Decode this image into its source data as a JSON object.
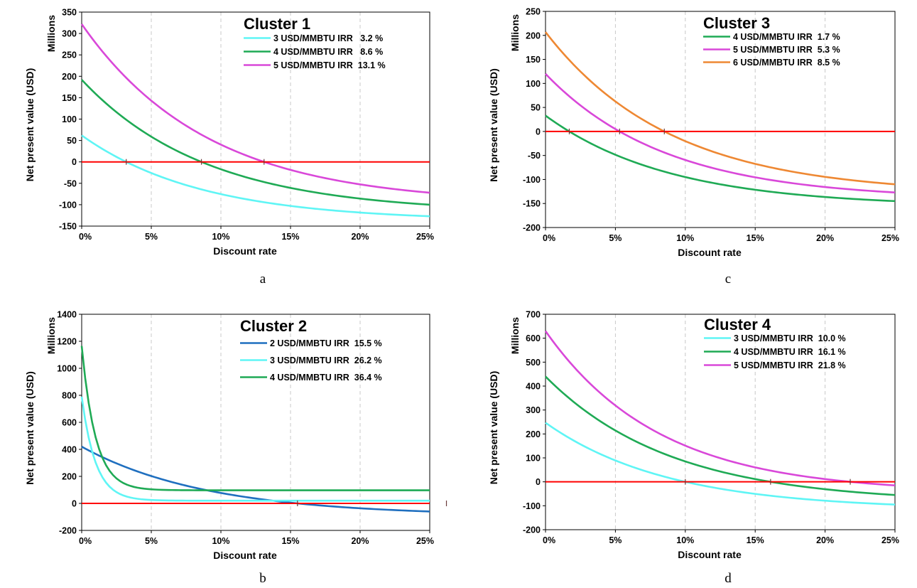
{
  "colors": {
    "zero_line": "#ff0000",
    "grid": "#c8c8c8",
    "axis": "#000000"
  },
  "chart_data": [
    {
      "panel_label": "a",
      "type": "line",
      "title": "Cluster 1",
      "xlabel": "Discount rate",
      "ylabel": "Net present value (USD)",
      "yunit": "Millions",
      "xlim": [
        0,
        25
      ],
      "ylim": [
        -150,
        350
      ],
      "xticks": [
        0,
        5,
        10,
        15,
        20,
        25
      ],
      "xtick_labels": [
        "0%",
        "5%",
        "10%",
        "15%",
        "20%",
        "25%"
      ],
      "yticks": [
        -150,
        -100,
        -50,
        0,
        50,
        100,
        150,
        200,
        250,
        300,
        350
      ],
      "ytick_labels": [
        "-150",
        "-100",
        "-50",
        "0",
        "50",
        "100",
        "150",
        "200",
        "250",
        "300",
        "350"
      ],
      "grid": "vertical dashed",
      "legend_position": "top-right",
      "series": [
        {
          "name": "3 USD/MMBTU IRR   3.2 %",
          "color": "#5ff5f5",
          "npv0": 62,
          "npv25": -127,
          "irr": 3.2
        },
        {
          "name": "4 USD/MMBTU IRR   8.6 %",
          "color": "#1faa55",
          "npv0": 192,
          "npv25": -100,
          "irr": 8.6
        },
        {
          "name": "5 USD/MMBTU IRR  13.1 %",
          "color": "#d948d9",
          "npv0": 322,
          "npv25": -72,
          "irr": 13.1
        }
      ]
    },
    {
      "panel_label": "c",
      "type": "line",
      "title": "Cluster 3",
      "xlabel": "Discount rate",
      "ylabel": "Net present value (USD)",
      "yunit": "Millions",
      "xlim": [
        0,
        25
      ],
      "ylim": [
        -200,
        250
      ],
      "xticks": [
        0,
        5,
        10,
        15,
        20,
        25
      ],
      "xtick_labels": [
        "0%",
        "5%",
        "10%",
        "15%",
        "20%",
        "25%"
      ],
      "yticks": [
        -200,
        -150,
        -100,
        -50,
        0,
        50,
        100,
        150,
        200,
        250
      ],
      "ytick_labels": [
        "-200",
        "-150",
        "-100",
        "-50",
        "0",
        "50",
        "100",
        "150",
        "200",
        "250"
      ],
      "grid": "vertical dashed",
      "legend_position": "top-right",
      "series": [
        {
          "name": "4 USD/MMBTU IRR  1.7 %",
          "color": "#1faa55",
          "npv0": 33,
          "npv25": -145,
          "irr": 1.7
        },
        {
          "name": "5 USD/MMBTU IRR  5.3 %",
          "color": "#d948d9",
          "npv0": 120,
          "npv25": -127,
          "irr": 5.3
        },
        {
          "name": "6 USD/MMBTU IRR  8.5 %",
          "color": "#ee8833",
          "npv0": 207,
          "npv25": -110,
          "irr": 8.5
        }
      ]
    },
    {
      "panel_label": "b",
      "type": "line",
      "title": "Cluster 2",
      "xlabel": "Discount rate",
      "ylabel": "Net present value (USD)",
      "yunit": "Millions",
      "xlim": [
        0,
        25
      ],
      "ylim": [
        -200,
        1400
      ],
      "xticks": [
        0,
        5,
        10,
        15,
        20,
        25
      ],
      "xtick_labels": [
        "0%",
        "5%",
        "10%",
        "15%",
        "20%",
        "25%"
      ],
      "yticks": [
        -200,
        0,
        200,
        400,
        600,
        800,
        1000,
        1200,
        1400
      ],
      "ytick_labels": [
        "-200",
        "0",
        "200",
        "400",
        "600",
        "800",
        "1000",
        "1200",
        "1400"
      ],
      "grid": "vertical dashed",
      "legend_position": "top-right",
      "series": [
        {
          "name": "2 USD/MMBTU IRR  15.5 %",
          "color": "#1f6fbf",
          "npv0": 420,
          "npv25": -60,
          "irr": 15.5
        },
        {
          "name": "3 USD/MMBTU IRR  26.2 %",
          "color": "#5ff5f5",
          "npv0": 790,
          "npv25": 20,
          "irr": 26.2
        },
        {
          "name": "4 USD/MMBTU IRR  36.4 %",
          "color": "#1faa55",
          "npv0": 1165,
          "npv25": 97,
          "irr": 36.4
        }
      ]
    },
    {
      "panel_label": "d",
      "type": "line",
      "title": "Cluster 4",
      "xlabel": "Discount rate",
      "ylabel": "Net present value (USD)",
      "yunit": "Millions",
      "xlim": [
        0,
        25
      ],
      "ylim": [
        -200,
        700
      ],
      "xticks": [
        0,
        5,
        10,
        15,
        20,
        25
      ],
      "xtick_labels": [
        "0%",
        "5%",
        "10%",
        "15%",
        "20%",
        "25%"
      ],
      "yticks": [
        -200,
        -100,
        0,
        100,
        200,
        300,
        400,
        500,
        600,
        700
      ],
      "ytick_labels": [
        "-200",
        "-100",
        "0",
        "100",
        "200",
        "300",
        "400",
        "500",
        "600",
        "700"
      ],
      "grid": "vertical dashed",
      "legend_position": "top-right",
      "series": [
        {
          "name": "3 USD/MMBTU IRR  10.0 %",
          "color": "#5ff5f5",
          "npv0": 247,
          "npv25": -95,
          "irr": 10.0
        },
        {
          "name": "4 USD/MMBTU IRR  16.1 %",
          "color": "#1faa55",
          "npv0": 440,
          "npv25": -55,
          "irr": 16.1
        },
        {
          "name": "5 USD/MMBTU IRR  21.8 %",
          "color": "#d948d9",
          "npv0": 630,
          "npv25": -15,
          "irr": 21.8
        }
      ]
    }
  ]
}
